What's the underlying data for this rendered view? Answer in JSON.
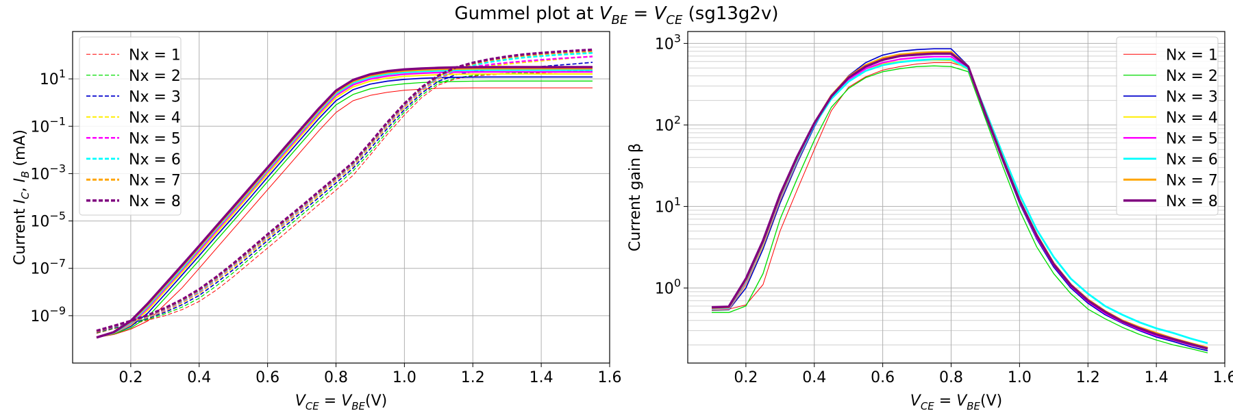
{
  "figure": {
    "suptitle": "Gummel plot at V_BE = V_CE (sg13g2v)"
  },
  "colors": {
    "Nx = 1": "#ff0000",
    "Nx = 2": "#00dd00",
    "Nx = 3": "#0000cc",
    "Nx = 4": "#ffee00",
    "Nx = 5": "#ff00ff",
    "Nx = 6": "#00ffff",
    "Nx = 7": "#ffa500",
    "Nx = 8": "#800080"
  },
  "chart_data": [
    {
      "type": "line",
      "title": "",
      "xlabel": "V_CE = V_BE(V)",
      "ylabel": "Current I_C, I_B (mA)",
      "yscale": "log",
      "xlim": [
        0.03,
        1.6
      ],
      "ylim": [
        1e-11,
        1000
      ],
      "xticks": [
        0.2,
        0.4,
        0.6,
        0.8,
        1.0,
        1.2,
        1.4,
        1.6
      ],
      "xtick_labels": [
        "0.2",
        "0.4",
        "0.6",
        "0.8",
        "1.0",
        "1.2",
        "1.4",
        "1.6"
      ],
      "ytick_exponents": [
        -9,
        -7,
        -5,
        -3,
        -1,
        1
      ],
      "grid": true,
      "legend": {
        "placement": "upper-left",
        "linestyle": "dashed",
        "entries": [
          "Nx = 1",
          "Nx = 2",
          "Nx = 3",
          "Nx = 4",
          "Nx = 5",
          "Nx = 6",
          "Nx = 7",
          "Nx = 8"
        ]
      },
      "x": [
        0.1,
        0.15,
        0.2,
        0.25,
        0.3,
        0.35,
        0.4,
        0.45,
        0.5,
        0.55,
        0.6,
        0.65,
        0.7,
        0.75,
        0.8,
        0.85,
        0.9,
        0.95,
        1.0,
        1.05,
        1.1,
        1.15,
        1.2,
        1.25,
        1.3,
        1.35,
        1.4,
        1.45,
        1.5,
        1.55
      ],
      "series": [
        {
          "name": "Nx = 1",
          "kind": "collector",
          "values": [
            1.2e-10,
            1.6e-10,
            2.7e-10,
            6e-10,
            3e-09,
            1.5e-08,
            1e-07,
            6.8e-07,
            4.6e-06,
            3.1e-05,
            0.00021,
            0.0014,
            0.0095,
            0.065,
            0.38,
            1.2,
            2.0,
            2.7,
            3.3,
            3.7,
            4.0,
            4.1,
            4.2,
            4.2,
            4.2,
            4.2,
            4.2,
            4.2,
            4.2,
            4.2
          ]
        },
        {
          "name": "Nx = 1",
          "kind": "base",
          "values": [
            1.8e-10,
            2.8e-10,
            4.2e-10,
            6.5e-10,
            1e-09,
            1.8e-09,
            4e-09,
            1.2e-08,
            4.4e-08,
            1.8e-07,
            7.2e-07,
            2.9e-06,
            1.2e-05,
            4.9e-05,
            0.0002,
            0.00085,
            0.006,
            0.045,
            0.3,
            1.6,
            5.5,
            10,
            13,
            15,
            16,
            17,
            18,
            19,
            20,
            21
          ]
        },
        {
          "name": "Nx = 2",
          "kind": "collector",
          "values": [
            1.2e-10,
            1.7e-10,
            3e-10,
            9e-10,
            5.5e-09,
            3.4e-08,
            2.2e-07,
            1.5e-06,
            1e-05,
            6.8e-05,
            0.00046,
            0.0031,
            0.021,
            0.14,
            0.8,
            2.2,
            3.8,
            5.2,
            6.2,
            7.0,
            7.5,
            7.8,
            8.0,
            8.1,
            8.1,
            8.1,
            8.1,
            8.1,
            8.1,
            8.1
          ]
        },
        {
          "name": "Nx = 2",
          "kind": "base",
          "values": [
            1.9e-10,
            2.9e-10,
            4.4e-10,
            7e-10,
            1.2e-09,
            2.3e-09,
            5.5e-09,
            1.8e-08,
            6.6e-08,
            2.7e-07,
            1.1e-06,
            4.4e-06,
            1.8e-05,
            7.3e-05,
            0.0003,
            0.0013,
            0.008,
            0.06,
            0.4,
            2.0,
            6.5,
            11,
            14,
            16,
            17,
            18,
            19,
            20,
            21,
            22
          ]
        },
        {
          "name": "Nx = 3",
          "kind": "collector",
          "values": [
            1.2e-10,
            1.8e-10,
            3.5e-10,
            1.3e-09,
            8e-09,
            5.2e-08,
            3.4e-07,
            2.3e-06,
            1.5e-05,
            0.0001,
            0.0007,
            0.0047,
            0.032,
            0.21,
            1.2,
            3.5,
            6.0,
            8.0,
            9.5,
            10.5,
            11.2,
            11.6,
            11.9,
            12,
            12,
            12,
            12,
            12,
            12,
            12
          ]
        },
        {
          "name": "Nx = 3",
          "kind": "base",
          "values": [
            2e-10,
            3.1e-10,
            4.8e-10,
            7.8e-10,
            1.4e-09,
            2.9e-09,
            7.2e-09,
            2.4e-08,
            8.9e-08,
            3.6e-07,
            1.5e-06,
            5.9e-06,
            2.4e-05,
            9.8e-05,
            0.0004,
            0.0017,
            0.011,
            0.08,
            0.5,
            2.5,
            8.0,
            15,
            20,
            24,
            27,
            30,
            33,
            38,
            43,
            50
          ]
        },
        {
          "name": "Nx = 4",
          "kind": "collector",
          "values": [
            1.2e-10,
            1.8e-10,
            4e-10,
            1.7e-09,
            1.1e-08,
            6.8e-08,
            4.5e-07,
            3e-06,
            2e-05,
            0.00014,
            0.00094,
            0.0063,
            0.043,
            0.28,
            1.6,
            4.6,
            8.0,
            10.8,
            12.8,
            14,
            15,
            15.6,
            16,
            16.1,
            16.1,
            16.1,
            16.1,
            16.1,
            16.1,
            16.1
          ]
        },
        {
          "name": "Nx = 4",
          "kind": "base",
          "values": [
            2.1e-10,
            3.3e-10,
            5.2e-10,
            8.6e-10,
            1.6e-09,
            3.5e-09,
            8.9e-09,
            3e-08,
            1.1e-07,
            4.5e-07,
            1.8e-06,
            7.3e-06,
            3e-05,
            0.00012,
            0.0005,
            0.0021,
            0.014,
            0.1,
            0.62,
            3.0,
            10,
            20,
            28,
            35,
            42,
            50,
            58,
            67,
            78,
            90
          ]
        },
        {
          "name": "Nx = 5",
          "kind": "collector",
          "values": [
            1.2e-10,
            1.9e-10,
            4.5e-10,
            2.1e-09,
            1.35e-08,
            8.5e-08,
            5.6e-07,
            3.8e-06,
            2.5e-05,
            0.00017,
            0.0012,
            0.0079,
            0.053,
            0.35,
            2.0,
            5.6,
            9.8,
            13.3,
            15.8,
            17.3,
            18.5,
            19.2,
            19.6,
            19.8,
            19.8,
            19.8,
            19.8,
            19.8,
            19.8,
            19.8
          ]
        },
        {
          "name": "Nx = 5",
          "kind": "base",
          "values": [
            2.1e-10,
            3.4e-10,
            5.4e-10,
            9.2e-10,
            1.75e-09,
            3.9e-09,
            1e-08,
            3.4e-08,
            1.3e-07,
            5.2e-07,
            2.1e-06,
            8.4e-06,
            3.4e-05,
            0.00014,
            0.00057,
            0.0024,
            0.016,
            0.115,
            0.72,
            3.4,
            11,
            22,
            32,
            40,
            48,
            56,
            64,
            72,
            80,
            88
          ]
        },
        {
          "name": "Nx = 6",
          "kind": "collector",
          "values": [
            1.2e-10,
            1.9e-10,
            5e-10,
            2.5e-09,
            1.6e-08,
            1e-07,
            6.8e-07,
            4.6e-06,
            3e-05,
            0.0002,
            0.0014,
            0.0094,
            0.064,
            0.42,
            2.4,
            6.8,
            11.8,
            16,
            19,
            20.8,
            22.2,
            23,
            23.5,
            23.7,
            23.7,
            23.7,
            23.7,
            23.7,
            23.7,
            23.7
          ]
        },
        {
          "name": "Nx = 6",
          "kind": "base",
          "values": [
            2.2e-10,
            3.5e-10,
            5.6e-10,
            9.6e-10,
            1.9e-09,
            4.2e-09,
            1.1e-08,
            3.7e-08,
            1.4e-07,
            5.6e-07,
            2.3e-06,
            9.2e-06,
            3.7e-05,
            0.00015,
            0.00062,
            0.0026,
            0.017,
            0.125,
            0.8,
            3.8,
            12,
            25,
            38,
            52,
            66,
            80,
            92,
            104,
            114,
            125
          ]
        },
        {
          "name": "Nx = 7",
          "kind": "collector",
          "values": [
            1.2e-10,
            2e-10,
            5.5e-10,
            2.9e-09,
            1.85e-08,
            1.2e-07,
            7.8e-07,
            5.3e-06,
            3.5e-05,
            0.00023,
            0.0016,
            0.011,
            0.074,
            0.49,
            2.8,
            7.9,
            13.7,
            18.6,
            22,
            24,
            25.7,
            26.7,
            27.3,
            27.5,
            27.5,
            27.5,
            27.5,
            27.5,
            27.5,
            27.5
          ]
        },
        {
          "name": "Nx = 7",
          "kind": "base",
          "values": [
            2.2e-10,
            3.6e-10,
            5.8e-10,
            1e-09,
            2e-09,
            4.5e-09,
            1.2e-08,
            4e-08,
            1.5e-07,
            6e-07,
            2.5e-06,
            1e-05,
            4e-05,
            0.00016,
            0.00066,
            0.0028,
            0.018,
            0.135,
            0.85,
            4.1,
            13,
            28,
            44,
            62,
            80,
            98,
            112,
            126,
            138,
            150
          ]
        },
        {
          "name": "Nx = 8",
          "kind": "collector",
          "values": [
            1.2e-10,
            2e-10,
            6e-10,
            3.3e-09,
            2.1e-08,
            1.35e-07,
            8.9e-07,
            6e-06,
            4e-05,
            0.00027,
            0.0018,
            0.0125,
            0.085,
            0.56,
            3.2,
            9.0,
            15.6,
            21.2,
            25,
            27.5,
            29.3,
            30.4,
            31.1,
            31.4,
            31.4,
            31.4,
            31.4,
            31.4,
            31.4,
            31.4
          ]
        },
        {
          "name": "Nx = 8",
          "kind": "base",
          "values": [
            2.3e-10,
            3.7e-10,
            6e-10,
            1.05e-09,
            2.1e-09,
            4.8e-09,
            1.3e-08,
            4.3e-08,
            1.6e-07,
            6.5e-07,
            2.7e-06,
            1.1e-05,
            4.3e-05,
            0.000175,
            0.00071,
            0.003,
            0.02,
            0.145,
            0.9,
            4.4,
            14,
            30,
            48,
            68,
            88,
            108,
            124,
            140,
            155,
            170
          ]
        }
      ]
    },
    {
      "type": "line",
      "title": "",
      "xlabel": "V_CE = V_BE(V)",
      "ylabel": "Current gain β",
      "yscale": "log",
      "xlim": [
        0.03,
        1.6
      ],
      "ylim": [
        0.12,
        1400
      ],
      "xticks": [
        0.2,
        0.4,
        0.6,
        0.8,
        1.0,
        1.2,
        1.4,
        1.6
      ],
      "xtick_labels": [
        "0.2",
        "0.4",
        "0.6",
        "0.8",
        "1.0",
        "1.2",
        "1.4",
        "1.6"
      ],
      "ytick_exponents": [
        0,
        1,
        2,
        3
      ],
      "grid": true,
      "minor_grid": true,
      "legend": {
        "placement": "upper-right",
        "linestyle": "solid",
        "entries": [
          "Nx = 1",
          "Nx = 2",
          "Nx = 3",
          "Nx = 4",
          "Nx = 5",
          "Nx = 6",
          "Nx = 7",
          "Nx = 8"
        ]
      },
      "x": [
        0.1,
        0.15,
        0.2,
        0.25,
        0.3,
        0.35,
        0.4,
        0.45,
        0.5,
        0.55,
        0.6,
        0.65,
        0.7,
        0.75,
        0.8,
        0.85,
        0.9,
        0.95,
        1.0,
        1.05,
        1.1,
        1.15,
        1.2,
        1.25,
        1.3,
        1.35,
        1.4,
        1.45,
        1.5,
        1.55
      ],
      "series": [
        {
          "name": "Nx = 1",
          "values": [
            0.55,
            0.55,
            0.62,
            1.1,
            5,
            16,
            50,
            150,
            290,
            390,
            470,
            520,
            560,
            580,
            580,
            500,
            150,
            40,
            11,
            4.2,
            2.0,
            1.1,
            0.7,
            0.5,
            0.4,
            0.33,
            0.28,
            0.24,
            0.21,
            0.18
          ]
        },
        {
          "name": "Nx = 2",
          "values": [
            0.5,
            0.5,
            0.6,
            1.5,
            7,
            22,
            65,
            165,
            280,
            380,
            450,
            490,
            520,
            530,
            520,
            450,
            120,
            32,
            9,
            3.2,
            1.5,
            0.85,
            0.55,
            0.42,
            0.33,
            0.27,
            0.23,
            0.2,
            0.18,
            0.16
          ]
        },
        {
          "name": "Nx = 3",
          "values": [
            0.53,
            0.54,
            1.0,
            3.0,
            11,
            34,
            95,
            220,
            400,
            580,
            720,
            800,
            840,
            860,
            860,
            530,
            130,
            37,
            11,
            4.0,
            1.8,
            1.0,
            0.65,
            0.47,
            0.37,
            0.3,
            0.25,
            0.22,
            0.19,
            0.17
          ]
        },
        {
          "name": "Nx = 4",
          "values": [
            0.54,
            0.55,
            1.1,
            3.3,
            12,
            36,
            100,
            220,
            370,
            490,
            560,
            600,
            620,
            630,
            620,
            480,
            140,
            40,
            12,
            4.4,
            2.0,
            1.1,
            0.7,
            0.5,
            0.39,
            0.32,
            0.27,
            0.23,
            0.2,
            0.18
          ]
        },
        {
          "name": "Nx = 5",
          "values": [
            0.55,
            0.56,
            1.15,
            3.5,
            12.5,
            37,
            100,
            215,
            360,
            490,
            580,
            640,
            670,
            690,
            690,
            500,
            135,
            38,
            11.5,
            4.2,
            1.9,
            1.05,
            0.68,
            0.49,
            0.38,
            0.31,
            0.26,
            0.23,
            0.2,
            0.18
          ]
        },
        {
          "name": "Nx = 6",
          "values": [
            0.56,
            0.57,
            1.2,
            3.6,
            13,
            38,
            100,
            210,
            340,
            460,
            540,
            590,
            620,
            640,
            640,
            490,
            150,
            45,
            14,
            5.2,
            2.4,
            1.3,
            0.85,
            0.6,
            0.47,
            0.38,
            0.32,
            0.28,
            0.24,
            0.21
          ]
        },
        {
          "name": "Nx = 7",
          "values": [
            0.57,
            0.58,
            1.25,
            3.7,
            13.5,
            40,
            105,
            230,
            390,
            540,
            660,
            730,
            760,
            780,
            780,
            520,
            140,
            40,
            12,
            4.5,
            2.0,
            1.1,
            0.72,
            0.52,
            0.4,
            0.33,
            0.28,
            0.24,
            0.21,
            0.185
          ]
        },
        {
          "name": "Nx = 8",
          "values": [
            0.58,
            0.59,
            1.3,
            3.8,
            14,
            41,
            105,
            225,
            380,
            520,
            630,
            700,
            730,
            750,
            750,
            520,
            138,
            39,
            11.8,
            4.4,
            1.95,
            1.08,
            0.7,
            0.51,
            0.39,
            0.32,
            0.27,
            0.235,
            0.205,
            0.18
          ]
        }
      ]
    }
  ]
}
